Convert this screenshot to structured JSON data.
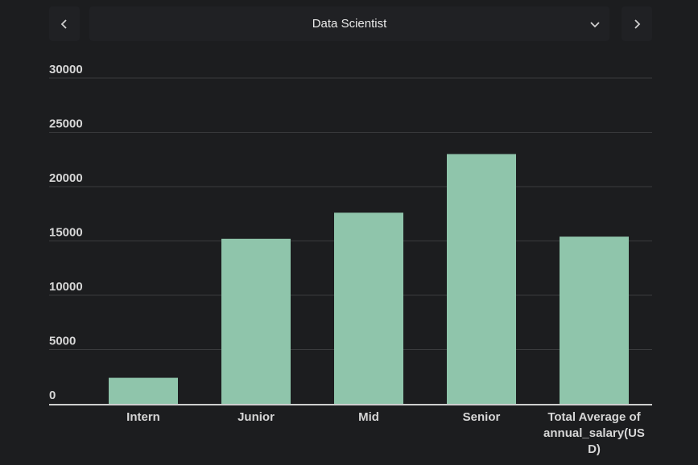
{
  "selector": {
    "value": "Data Scientist"
  },
  "icons": {
    "prev": "chevron-left-icon",
    "next": "chevron-right-icon",
    "dropdown": "chevron-down-icon"
  },
  "colors": {
    "background": "#1c1d1f",
    "bar": "#8fc5ab",
    "grid": "#3a3b3d",
    "axis": "#cfcfcf"
  },
  "chart_data": {
    "type": "bar",
    "categories": [
      "Intern",
      "Junior",
      "Mid",
      "Senior",
      "Total Average of annual_salary(USD)"
    ],
    "category_lines": [
      [
        "Intern"
      ],
      [
        "Junior"
      ],
      [
        "Mid"
      ],
      [
        "Senior"
      ],
      [
        "Total Average of",
        "annual_salary(US",
        "D)"
      ]
    ],
    "values": [
      2400,
      15200,
      17600,
      23000,
      15400
    ],
    "yticks": [
      0,
      5000,
      10000,
      15000,
      20000,
      25000,
      30000
    ],
    "ylim": [
      0,
      30000
    ],
    "grid": true
  }
}
